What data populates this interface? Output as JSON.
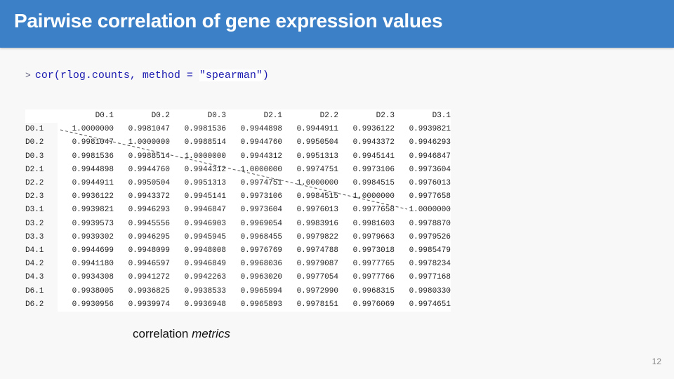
{
  "slide": {
    "title": "Pairwise correlation of gene expression values",
    "page_number": "12"
  },
  "code": {
    "prompt": ">",
    "func": "cor(rlog.counts, method = ",
    "string": "\"spearman\"",
    "close": ")"
  },
  "table": {
    "corner": "",
    "columns": [
      "D0.1",
      "D0.2",
      "D0.3",
      "D2.1",
      "D2.2",
      "D2.3",
      "D3.1"
    ],
    "rows": [
      {
        "name": "D0.1",
        "values": [
          "1.0000000",
          "0.9981047",
          "0.9981536",
          "0.9944898",
          "0.9944911",
          "0.9936122",
          "0.9939821"
        ]
      },
      {
        "name": "D0.2",
        "values": [
          "0.9981047",
          "1.0000000",
          "0.9988514",
          "0.9944760",
          "0.9950504",
          "0.9943372",
          "0.9946293"
        ]
      },
      {
        "name": "D0.3",
        "values": [
          "0.9981536",
          "0.9988514",
          "1.0000000",
          "0.9944312",
          "0.9951313",
          "0.9945141",
          "0.9946847"
        ]
      },
      {
        "name": "D2.1",
        "values": [
          "0.9944898",
          "0.9944760",
          "0.9944312",
          "1.0000000",
          "0.9974751",
          "0.9973106",
          "0.9973604"
        ]
      },
      {
        "name": "D2.2",
        "values": [
          "0.9944911",
          "0.9950504",
          "0.9951313",
          "0.9974751",
          "1.0000000",
          "0.9984515",
          "0.9976013"
        ]
      },
      {
        "name": "D2.3",
        "values": [
          "0.9936122",
          "0.9943372",
          "0.9945141",
          "0.9973106",
          "0.9984515",
          "1.0000000",
          "0.9977658"
        ]
      },
      {
        "name": "D3.1",
        "values": [
          "0.9939821",
          "0.9946293",
          "0.9946847",
          "0.9973604",
          "0.9976013",
          "0.9977658",
          "1.0000000"
        ]
      },
      {
        "name": "D3.2",
        "values": [
          "0.9939573",
          "0.9945556",
          "0.9946903",
          "0.9969054",
          "0.9983916",
          "0.9981603",
          "0.9978870"
        ]
      },
      {
        "name": "D3.3",
        "values": [
          "0.9939302",
          "0.9946295",
          "0.9945945",
          "0.9968455",
          "0.9979822",
          "0.9979663",
          "0.9979526"
        ]
      },
      {
        "name": "D4.1",
        "values": [
          "0.9944699",
          "0.9948099",
          "0.9948008",
          "0.9976769",
          "0.9974788",
          "0.9973018",
          "0.9985479"
        ]
      },
      {
        "name": "D4.2",
        "values": [
          "0.9941180",
          "0.9946597",
          "0.9946849",
          "0.9968036",
          "0.9979087",
          "0.9977765",
          "0.9978234"
        ]
      },
      {
        "name": "D4.3",
        "values": [
          "0.9934308",
          "0.9941272",
          "0.9942263",
          "0.9963020",
          "0.9977054",
          "0.9977766",
          "0.9977168"
        ]
      },
      {
        "name": "D6.1",
        "values": [
          "0.9938005",
          "0.9936825",
          "0.9938533",
          "0.9965994",
          "0.9972990",
          "0.9968315",
          "0.9980330"
        ]
      },
      {
        "name": "D6.2",
        "values": [
          "0.9930956",
          "0.9939974",
          "0.9936948",
          "0.9965893",
          "0.9978151",
          "0.9976069",
          "0.9974651"
        ]
      }
    ]
  },
  "annotation": {
    "caption_plain": "correlation ",
    "caption_italic": "metrics",
    "diagonal_line_style": "dashed",
    "diagonal_line_color": "#555555"
  },
  "colors": {
    "title_bar": "#3c80c7",
    "title_text": "#ffffff",
    "code_text": "#1a1ab0",
    "background": "#f8f8f8"
  }
}
